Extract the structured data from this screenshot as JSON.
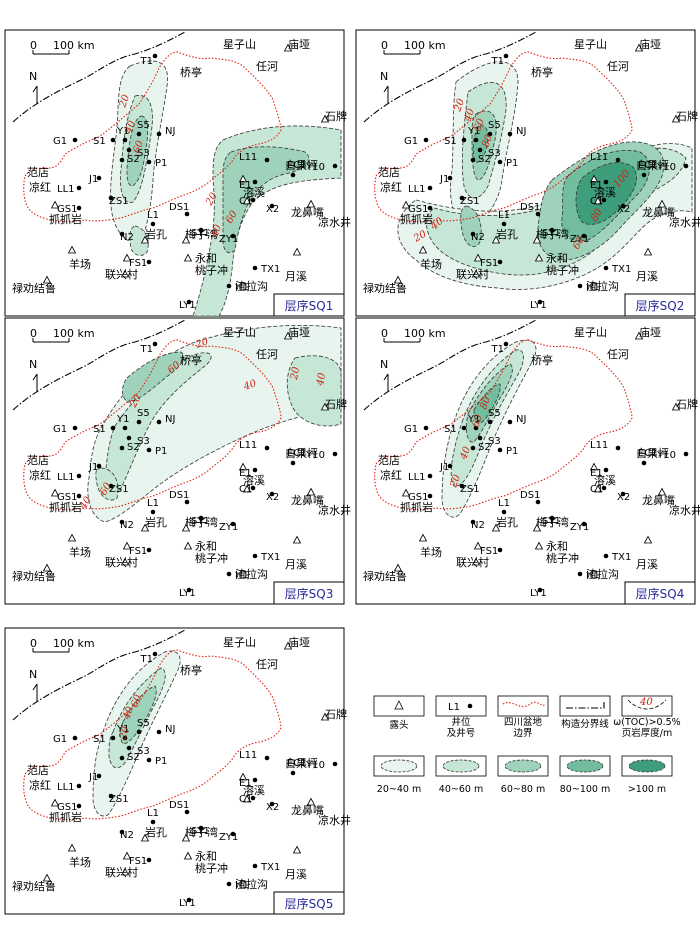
{
  "scale_label": "100 km",
  "scale_zero": "0",
  "north_label": "N",
  "sites": [
    "星子山",
    "庙垭",
    "任河",
    "桥亭",
    "石牌",
    "范店",
    "凉红",
    "抓抓岩",
    "羊场",
    "联兴村",
    "禄劝结鲁",
    "岩孔",
    "梅子湾",
    "永和",
    "桃子冲",
    "渣拉沟",
    "月溪",
    "溶溪",
    "龙鼻嘴",
    "凉水井",
    "白果坪"
  ],
  "wells": [
    "T1",
    "G1",
    "S1",
    "Y1",
    "S5",
    "NJ",
    "S3",
    "S2",
    "P1",
    "J1",
    "LL1",
    "ZS1",
    "GS1",
    "N2",
    "L1",
    "DS1",
    "SY1",
    "ZY1",
    "FS1",
    "H1",
    "LY1",
    "TX1",
    "E1",
    "C1",
    "X2",
    "EC1",
    "L11",
    "Y10"
  ],
  "panels": [
    {
      "title": "层序SQ1",
      "contours": [
        "20",
        "40",
        "60",
        "20",
        "40",
        "60"
      ]
    },
    {
      "title": "层序SQ2",
      "contours": [
        "20",
        "40",
        "60",
        "80",
        "20",
        "40",
        "60",
        "80",
        "100"
      ]
    },
    {
      "title": "层序SQ3",
      "contours": [
        "20",
        "40",
        "60",
        "20",
        "40",
        "60",
        "20",
        "40"
      ]
    },
    {
      "title": "层序SQ4",
      "contours": [
        "20",
        "40",
        "60",
        "80"
      ]
    },
    {
      "title": "层序SQ5",
      "contours": [
        "20",
        "40",
        "60"
      ]
    }
  ],
  "legend": {
    "items": [
      "露头",
      "井位及井号",
      "四川盆地边界",
      "构造分界线",
      "ω(TOC)>0.5%页岩厚度/m"
    ],
    "sample_well": "L1",
    "sample_contour": "40",
    "thickness_classes": [
      "20~40 m",
      "40~60 m",
      "60~80 m",
      "80~100 m",
      ">100 m"
    ],
    "fill_colors": [
      "#e8f4ee",
      "#c6e6d6",
      "#9fd2bb",
      "#72bd9e",
      "#3e9e7c"
    ]
  }
}
